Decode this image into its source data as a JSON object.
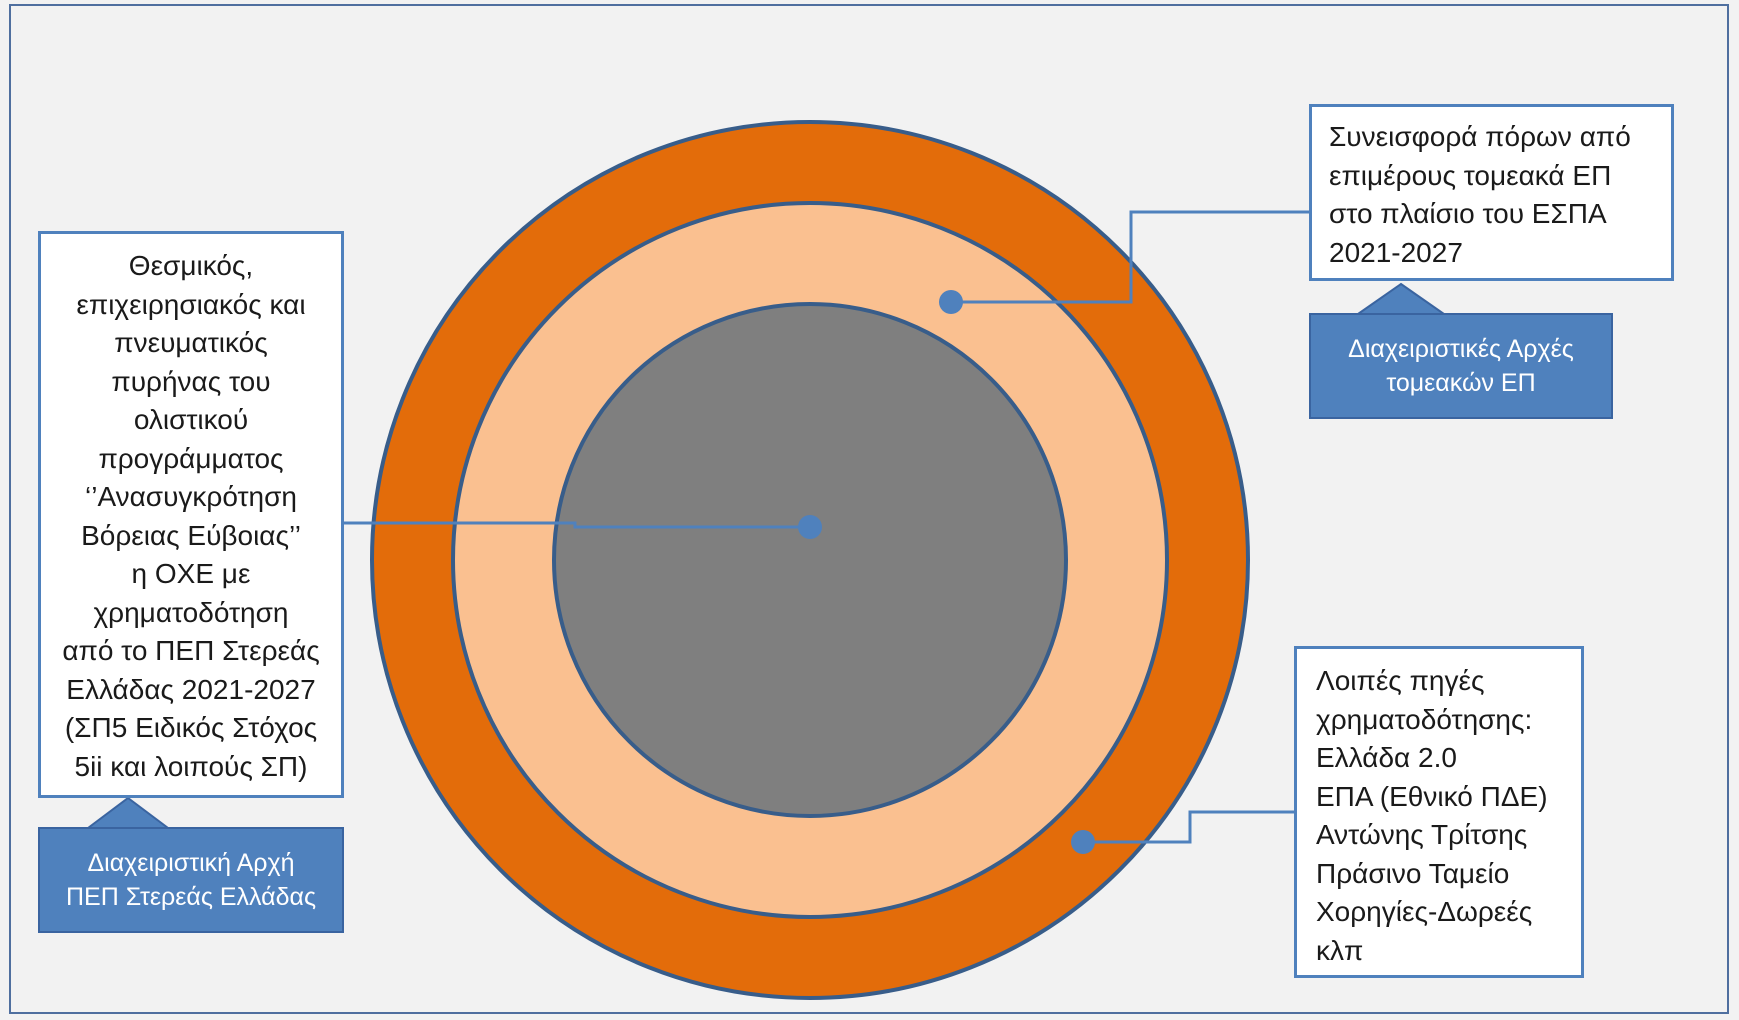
{
  "colors": {
    "outer_ring": "#e36c0a",
    "middle_ring": "#fac090",
    "core": "#7f7f7f",
    "accent_blue": "#4f81bd",
    "outline": "#385d8a"
  },
  "core_box": {
    "lines": [
      "Θεσμικός,",
      "επιχειρησιακός και",
      "πνευματικός",
      "πυρήνας  του",
      "ολιστικού",
      "προγράμματος",
      "‘’Ανασυγκρότηση",
      "Βόρειας Εύβοιας’’",
      "η ΟΧΕ με",
      "χρηματοδότηση",
      "από το ΠΕΠ Στερεάς",
      "Ελλάδας 2021-2027",
      "(ΣΠ5 Ειδικός Στόχος",
      "5ii  και λοιπούς ΣΠ)"
    ]
  },
  "core_tag": {
    "lines": [
      "Διαχειριστική Αρχή",
      "ΠΕΠ Στερεάς Ελλάδας"
    ]
  },
  "sectoral_box": {
    "lines": [
      "Συνεισφορά πόρων  από",
      "επιμέρους τομεακά ΕΠ",
      "στο πλαίσιο του ΕΣΠΑ",
      "2021-2027"
    ]
  },
  "sectoral_tag": {
    "lines": [
      "Διαχειριστικές Αρχές",
      "τομεακών ΕΠ"
    ]
  },
  "other_box": {
    "lines": [
      "Λοιπές πηγές",
      "χρηματοδότησης:",
      "Ελλάδα 2.0",
      "ΕΠΑ (Εθνικό ΠΔΕ)",
      "Αντώνης Τρίτσης",
      "Πράσινο Ταμείο",
      "Χορηγίες-Δωρεές",
      "κλπ"
    ]
  }
}
